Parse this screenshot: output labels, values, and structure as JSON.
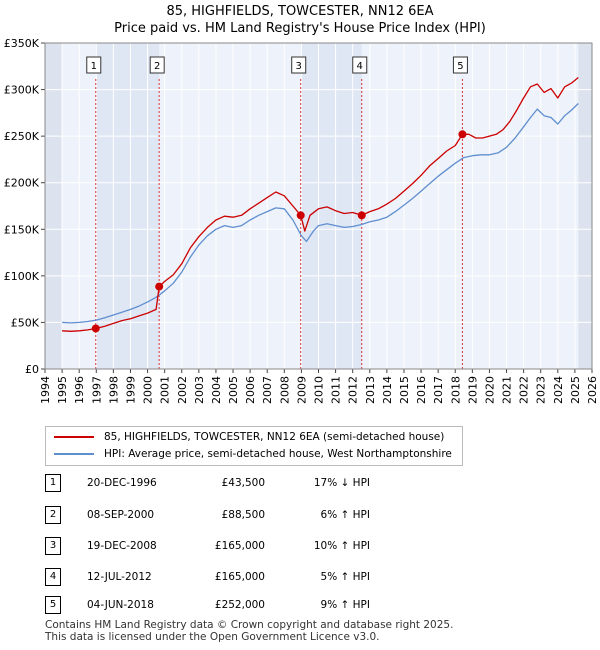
{
  "title": {
    "line1": "85, HIGHFIELDS, TOWCESTER, NN12 6EA",
    "line2": "Price paid vs. HM Land Registry's House Price Index (HPI)"
  },
  "chart_data": {
    "type": "line",
    "title": "85, HIGHFIELDS, TOWCESTER, NN12 6EA — Price paid vs. HM Land Registry's House Price Index (HPI)",
    "xlim": [
      1994,
      2026
    ],
    "ylim": [
      0,
      350000
    ],
    "y_ticks": [
      {
        "value": 0,
        "label": "£0"
      },
      {
        "value": 50000,
        "label": "£50K"
      },
      {
        "value": 100000,
        "label": "£100K"
      },
      {
        "value": 150000,
        "label": "£150K"
      },
      {
        "value": 200000,
        "label": "£200K"
      },
      {
        "value": 250000,
        "label": "£250K"
      },
      {
        "value": 300000,
        "label": "£300K"
      },
      {
        "value": 350000,
        "label": "£350K"
      }
    ],
    "x_ticks": [
      "1994",
      "1995",
      "1996",
      "1997",
      "1998",
      "1999",
      "2000",
      "2001",
      "2002",
      "2003",
      "2004",
      "2005",
      "2006",
      "2007",
      "2008",
      "2009",
      "2010",
      "2011",
      "2012",
      "2013",
      "2014",
      "2015",
      "2016",
      "2017",
      "2018",
      "2019",
      "2020",
      "2021",
      "2022",
      "2023",
      "2024",
      "2025",
      "2026"
    ],
    "data_start": 1995.0,
    "data_end": 2025.2,
    "series": [
      {
        "name": "85, HIGHFIELDS, TOWCESTER, NN12 6EA (semi-detached house)",
        "color": "#cc0000",
        "x": [
          1995.0,
          1995.5,
          1996.0,
          1996.5,
          1996.97,
          1997.5,
          1998.0,
          1998.5,
          1999.0,
          1999.5,
          2000.0,
          2000.5,
          2000.68,
          2001.0,
          2001.5,
          2002.0,
          2002.5,
          2003.0,
          2003.5,
          2004.0,
          2004.5,
          2005.0,
          2005.5,
          2006.0,
          2006.5,
          2007.0,
          2007.5,
          2008.0,
          2008.5,
          2008.96,
          2009.2,
          2009.5,
          2010.0,
          2010.5,
          2011.0,
          2011.5,
          2012.0,
          2012.53,
          2013.0,
          2013.5,
          2014.0,
          2014.5,
          2015.0,
          2015.5,
          2016.0,
          2016.5,
          2017.0,
          2017.5,
          2018.0,
          2018.42,
          2018.8,
          2019.2,
          2019.6,
          2020.0,
          2020.4,
          2020.8,
          2021.2,
          2021.6,
          2022.0,
          2022.4,
          2022.8,
          2023.2,
          2023.6,
          2024.0,
          2024.4,
          2024.8,
          2025.2
        ],
        "y": [
          41000,
          40500,
          41000,
          42000,
          43500,
          46000,
          49000,
          52000,
          54000,
          57000,
          60000,
          64000,
          88500,
          94000,
          101000,
          113000,
          130000,
          142000,
          152000,
          160000,
          164000,
          163000,
          165000,
          172000,
          178000,
          184000,
          190000,
          186000,
          175000,
          165000,
          148000,
          165000,
          172000,
          174000,
          170000,
          167000,
          168000,
          165000,
          169000,
          172000,
          177000,
          183000,
          191000,
          199000,
          208000,
          218000,
          226000,
          234000,
          240000,
          252000,
          252000,
          248000,
          248000,
          250000,
          252000,
          257000,
          266000,
          278000,
          291000,
          303000,
          306000,
          297000,
          301000,
          291000,
          303000,
          307000,
          313000
        ]
      },
      {
        "name": "HPI: Average price, semi-detached house, West Northamptonshire",
        "color": "#5f8fcf",
        "x": [
          1995.0,
          1995.5,
          1996.0,
          1996.5,
          1997.0,
          1997.5,
          1998.0,
          1998.5,
          1999.0,
          1999.5,
          2000.0,
          2000.5,
          2001.0,
          2001.5,
          2002.0,
          2002.5,
          2003.0,
          2003.5,
          2004.0,
          2004.5,
          2005.0,
          2005.5,
          2006.0,
          2006.5,
          2007.0,
          2007.5,
          2008.0,
          2008.5,
          2009.0,
          2009.3,
          2009.7,
          2010.0,
          2010.5,
          2011.0,
          2011.5,
          2012.0,
          2012.5,
          2013.0,
          2013.5,
          2014.0,
          2014.5,
          2015.0,
          2015.5,
          2016.0,
          2016.5,
          2017.0,
          2017.5,
          2018.0,
          2018.5,
          2019.0,
          2019.5,
          2020.0,
          2020.5,
          2021.0,
          2021.5,
          2022.0,
          2022.4,
          2022.8,
          2023.2,
          2023.6,
          2024.0,
          2024.4,
          2024.8,
          2025.2
        ],
        "y": [
          50000,
          49500,
          50000,
          51000,
          52500,
          55000,
          58000,
          61000,
          64000,
          67500,
          72000,
          77000,
          84000,
          92000,
          104000,
          120000,
          133000,
          143000,
          150000,
          154000,
          152000,
          154000,
          160000,
          165000,
          169000,
          173000,
          172000,
          160000,
          143000,
          137000,
          148000,
          154000,
          156000,
          154000,
          152000,
          153000,
          155000,
          158000,
          160000,
          163000,
          169000,
          176000,
          183000,
          191000,
          199000,
          207000,
          214000,
          221000,
          227000,
          229000,
          230000,
          230000,
          232000,
          238000,
          248000,
          260000,
          270000,
          279000,
          272000,
          270000,
          263000,
          272000,
          278000,
          285000
        ]
      }
    ],
    "markers": [
      {
        "label": "1",
        "x": 1996.97,
        "y": 43500
      },
      {
        "label": "2",
        "x": 2000.68,
        "y": 88500
      },
      {
        "label": "3",
        "x": 2008.96,
        "y": 165000
      },
      {
        "label": "4",
        "x": 2012.53,
        "y": 165000
      },
      {
        "label": "5",
        "x": 2018.42,
        "y": 252000
      }
    ]
  },
  "legend": {
    "red_label": "85, HIGHFIELDS, TOWCESTER, NN12 6EA (semi-detached house)",
    "blue_label": "HPI: Average price, semi-detached house, West Northamptonshire",
    "red_color": "#cc0000",
    "blue_color": "#5f8fcf"
  },
  "transactions": [
    {
      "num": "1",
      "date": "20-DEC-1996",
      "price": "£43,500",
      "hpi": "17% ↓ HPI"
    },
    {
      "num": "2",
      "date": "08-SEP-2000",
      "price": "£88,500",
      "hpi": "6% ↑ HPI"
    },
    {
      "num": "3",
      "date": "19-DEC-2008",
      "price": "£165,000",
      "hpi": "10% ↑ HPI"
    },
    {
      "num": "4",
      "date": "12-JUL-2012",
      "price": "£165,000",
      "hpi": "5% ↑ HPI"
    },
    {
      "num": "5",
      "date": "04-JUN-2018",
      "price": "£252,000",
      "hpi": "9% ↑ HPI"
    }
  ],
  "footer": {
    "line1": "Contains HM Land Registry data © Crown copyright and database right 2025.",
    "line2": "This data is licensed under the Open Government Licence v3.0."
  }
}
